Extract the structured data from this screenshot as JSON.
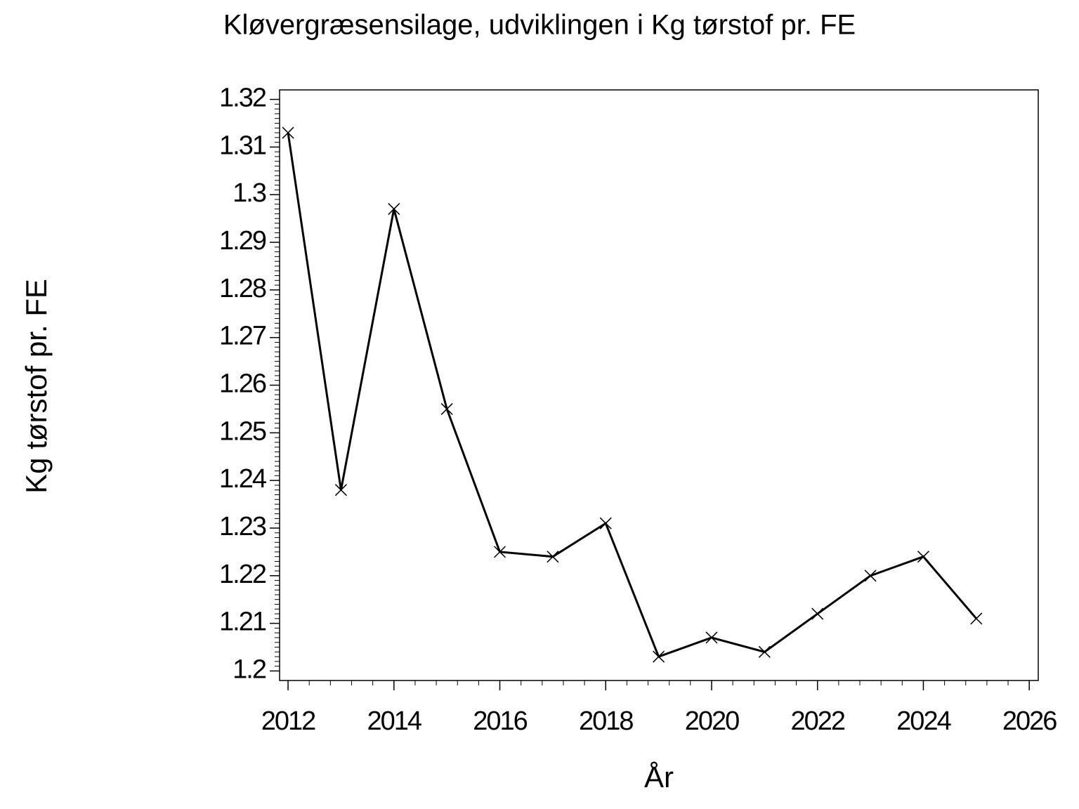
{
  "chart_data": {
    "type": "line",
    "title": "Kløvergræsensilage, udviklingen i Kg tørstof pr. FE",
    "x_label": "År",
    "y_label": "Kg tørstof pr. FE",
    "x": [
      2012,
      2013,
      2014,
      2015,
      2016,
      2017,
      2018,
      2019,
      2020,
      2021,
      2022,
      2023,
      2024,
      2025
    ],
    "series": [
      {
        "color": "#000000",
        "values": [
          1.313,
          1.238,
          1.297,
          1.255,
          1.225,
          1.224,
          1.231,
          1.203,
          1.207,
          1.204,
          1.212,
          1.22,
          1.224,
          1.211
        ]
      }
    ],
    "xlim": [
      2011.84,
      2026.17
    ],
    "xticks": [
      2012,
      2014,
      2016,
      2018,
      2020,
      2022,
      2024,
      2026
    ],
    "ylim": [
      1.198,
      1.322
    ],
    "yticks": [
      1.2,
      1.21,
      1.22,
      1.23,
      1.24,
      1.25,
      1.26,
      1.27,
      1.28,
      1.29,
      1.3,
      1.31,
      1.32
    ],
    "grid": false
  }
}
